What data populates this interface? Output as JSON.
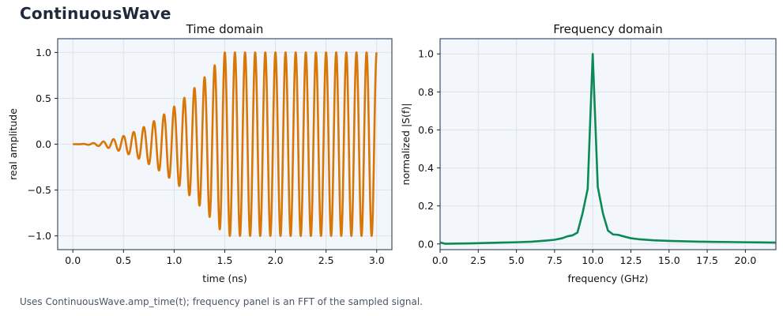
{
  "figure": {
    "title": "ContinuousWave",
    "caption": "Uses ContinuousWave.amp_time(t); frequency panel is an FFT of the sampled signal."
  },
  "colors": {
    "time_series": "#d97706",
    "freq_series": "#0b8a57",
    "axes_bg": "#f3f6fb",
    "axes_border": "#4a5d72",
    "grid": "#dde3ea"
  },
  "chart_data": [
    {
      "type": "line",
      "title": "Time domain",
      "xlabel": "time (ns)",
      "ylabel": "real amplitude",
      "xlim": [
        -0.15,
        3.15
      ],
      "ylim": [
        -1.15,
        1.15
      ],
      "xticks": [
        0.0,
        0.5,
        1.0,
        1.5,
        2.0,
        2.5,
        3.0
      ],
      "xtick_labels": [
        "0.0",
        "0.5",
        "1.0",
        "1.5",
        "2.0",
        "2.5",
        "3.0"
      ],
      "yticks": [
        -1.0,
        -0.5,
        0.0,
        0.5,
        1.0
      ],
      "ytick_labels": [
        "−1.0",
        "−0.5",
        "0.0",
        "0.5",
        "1.0"
      ],
      "grid": true,
      "series": [
        {
          "name": "",
          "frequency_ghz": 10,
          "ramp_end_ns": 1.5,
          "x_range": [
            0,
            3
          ],
          "color": "#d97706"
        }
      ]
    },
    {
      "type": "line",
      "title": "Frequency domain",
      "xlabel": "frequency (GHz)",
      "ylabel": "normalized |S(f)|",
      "xlim": [
        0,
        22
      ],
      "ylim": [
        -0.03,
        1.08
      ],
      "xticks": [
        0,
        2.5,
        5,
        7.5,
        10,
        12.5,
        15,
        17.5,
        20
      ],
      "xtick_labels": [
        "0.0",
        "2.5",
        "5.0",
        "7.5",
        "10.0",
        "12.5",
        "15.0",
        "17.5",
        "20.0"
      ],
      "yticks": [
        0,
        0.2,
        0.4,
        0.6,
        0.8,
        1.0
      ],
      "ytick_labels": [
        "0.0",
        "0.2",
        "0.4",
        "0.6",
        "0.8",
        "1.0"
      ],
      "grid": true,
      "series": [
        {
          "name": "",
          "color": "#0b8a57",
          "x": [
            0,
            0.33,
            1,
            2,
            3,
            4,
            5,
            6,
            6.67,
            7,
            7.5,
            8,
            8.33,
            8.67,
            9,
            9.33,
            9.67,
            10,
            10.33,
            10.67,
            11,
            11.33,
            11.67,
            12,
            12.5,
            13,
            14,
            15,
            16,
            17,
            18,
            19,
            20,
            21,
            22
          ],
          "y": [
            0.008,
            0.001,
            0.002,
            0.003,
            0.005,
            0.007,
            0.009,
            0.012,
            0.016,
            0.018,
            0.022,
            0.03,
            0.04,
            0.045,
            0.06,
            0.16,
            0.29,
            1.0,
            0.3,
            0.16,
            0.07,
            0.05,
            0.048,
            0.04,
            0.03,
            0.025,
            0.019,
            0.016,
            0.014,
            0.012,
            0.011,
            0.01,
            0.009,
            0.008,
            0.007
          ]
        }
      ]
    }
  ]
}
